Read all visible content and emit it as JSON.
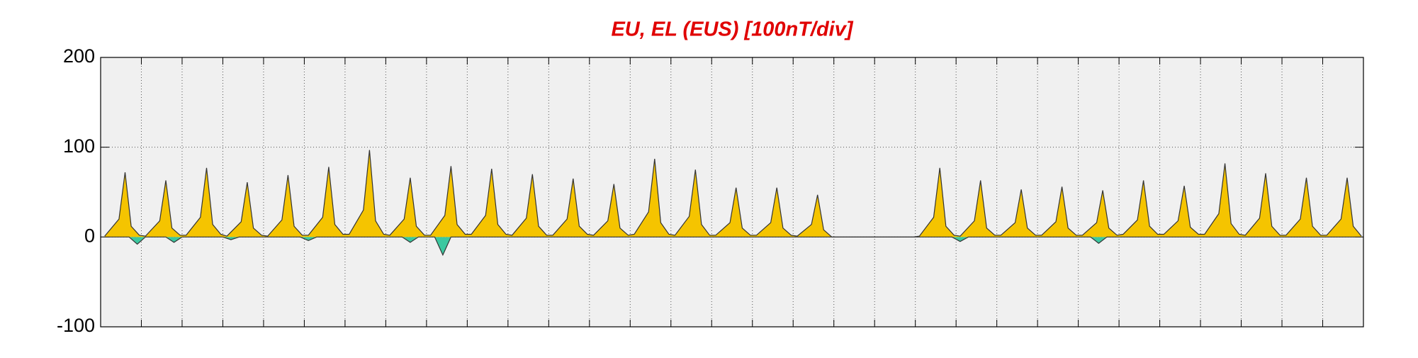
{
  "chart_data": {
    "type": "area",
    "title": "EU, EL (EUS)  [100nT/div]",
    "xlim": [
      0,
      31
    ],
    "xticks": [
      1,
      2,
      3,
      4,
      5,
      6,
      7,
      8,
      9,
      10,
      11,
      12,
      13,
      14,
      15,
      16,
      17,
      18,
      19,
      20,
      21,
      22,
      23,
      24,
      25,
      26,
      27,
      28,
      29,
      30
    ],
    "ylim": [
      -100,
      200
    ],
    "yticks": [
      -100,
      0,
      100,
      200
    ],
    "grid": true,
    "series": [
      {
        "color": "#f5c400",
        "x": [
          0.1,
          0.45,
          0.6,
          0.75,
          0.95,
          1.1,
          1.45,
          1.6,
          1.75,
          1.95,
          2.1,
          2.45,
          2.6,
          2.75,
          2.95,
          3.1,
          3.45,
          3.6,
          3.75,
          3.95,
          4.1,
          4.45,
          4.6,
          4.75,
          4.95,
          5.1,
          5.45,
          5.6,
          5.75,
          5.95,
          6.1,
          6.45,
          6.6,
          6.75,
          6.95,
          7.1,
          7.45,
          7.6,
          7.75,
          7.95,
          8.1,
          8.45,
          8.6,
          8.75,
          8.95,
          9.1,
          9.45,
          9.6,
          9.75,
          9.95,
          10.1,
          10.45,
          10.6,
          10.75,
          10.95,
          11.1,
          11.45,
          11.6,
          11.75,
          11.95,
          12.1,
          12.45,
          12.6,
          12.75,
          12.95,
          13.1,
          13.45,
          13.6,
          13.75,
          13.95,
          14.1,
          14.45,
          14.6,
          14.75,
          14.95,
          15.1,
          15.45,
          15.6,
          15.75,
          15.95,
          16.1,
          16.45,
          16.6,
          16.75,
          16.95,
          17.1,
          17.45,
          17.6,
          17.75,
          17.95,
          18.1,
          19.95,
          20.1,
          20.45,
          20.6,
          20.75,
          20.95,
          21.1,
          21.45,
          21.6,
          21.75,
          21.95,
          22.1,
          22.45,
          22.6,
          22.75,
          22.95,
          23.1,
          23.45,
          23.6,
          23.75,
          23.95,
          24.1,
          24.45,
          24.6,
          24.75,
          24.95,
          25.1,
          25.45,
          25.6,
          25.75,
          25.95,
          26.1,
          26.45,
          26.6,
          26.75,
          26.95,
          27.1,
          27.45,
          27.6,
          27.75,
          27.95,
          28.1,
          28.45,
          28.6,
          28.75,
          28.95,
          29.1,
          29.45,
          29.6,
          29.75,
          29.95,
          30.1,
          30.45,
          30.6,
          30.75,
          30.95
        ],
        "values": [
          1,
          20,
          72,
          12,
          2,
          1,
          18,
          63,
          10,
          2,
          2,
          22,
          77,
          14,
          3,
          1,
          17,
          61,
          10,
          2,
          1,
          19,
          69,
          12,
          2,
          2,
          22,
          78,
          14,
          3,
          3,
          30,
          97,
          18,
          3,
          2,
          20,
          66,
          12,
          2,
          2,
          24,
          79,
          14,
          3,
          3,
          24,
          76,
          14,
          3,
          2,
          21,
          70,
          12,
          2,
          2,
          20,
          65,
          12,
          3,
          2,
          18,
          59,
          10,
          2,
          3,
          28,
          87,
          16,
          3,
          2,
          23,
          75,
          14,
          2,
          2,
          16,
          55,
          10,
          2,
          2,
          16,
          55,
          10,
          2,
          1,
          14,
          47,
          8,
          0,
          0,
          0,
          1,
          22,
          77,
          12,
          2,
          1,
          18,
          63,
          10,
          2,
          2,
          16,
          53,
          10,
          2,
          2,
          17,
          56,
          10,
          2,
          2,
          16,
          52,
          10,
          2,
          3,
          19,
          63,
          12,
          3,
          3,
          18,
          57,
          11,
          3,
          3,
          26,
          82,
          15,
          3,
          2,
          21,
          71,
          12,
          2,
          2,
          20,
          66,
          12,
          2,
          2,
          20,
          66,
          12,
          1
        ]
      },
      {
        "color": "#3cc8a0",
        "x": [
          0,
          0.7,
          0.9,
          1.1,
          1.6,
          1.8,
          2.0,
          3.0,
          3.2,
          3.4,
          4.9,
          5.1,
          5.3,
          7.4,
          7.6,
          7.8,
          8.2,
          8.4,
          8.6,
          20.9,
          21.1,
          21.3,
          24.3,
          24.5,
          24.7,
          31
        ],
        "values": [
          0,
          0,
          -8,
          0,
          0,
          -6,
          0,
          0,
          -3,
          0,
          0,
          -4,
          0,
          0,
          -6,
          0,
          0,
          -20,
          0,
          0,
          -5,
          0,
          0,
          -7,
          0,
          0
        ]
      }
    ]
  }
}
